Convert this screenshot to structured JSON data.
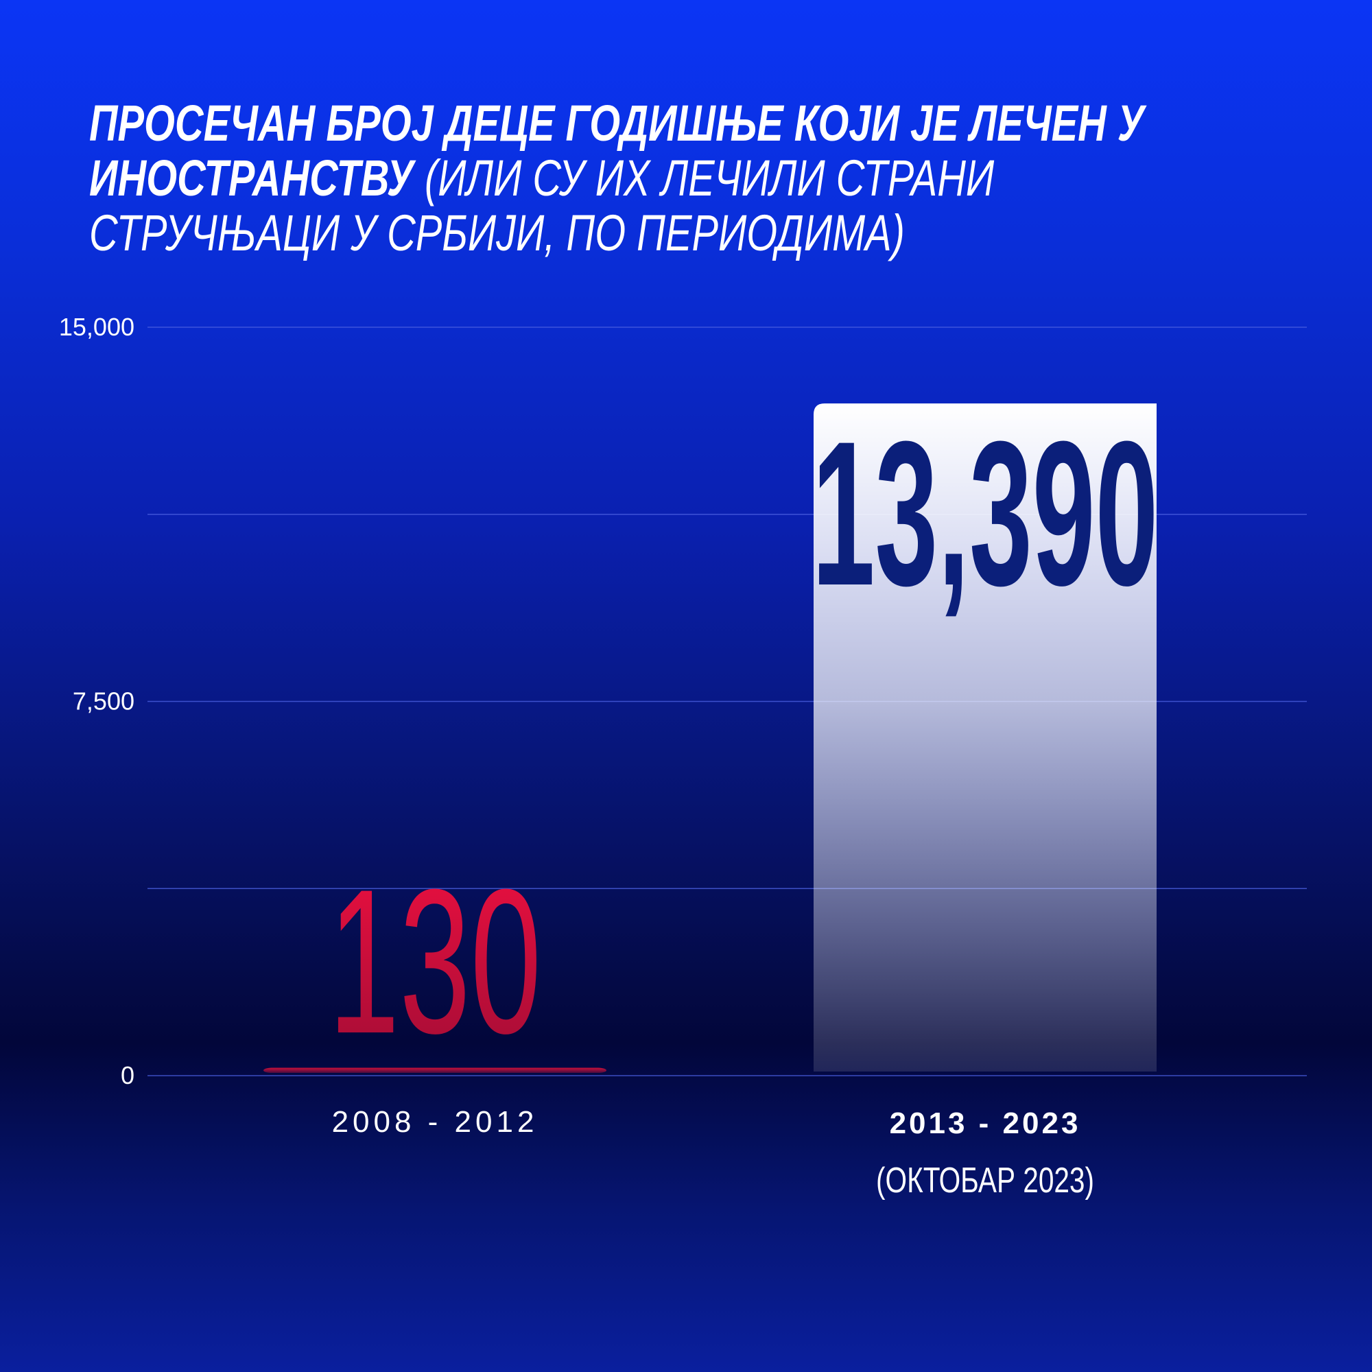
{
  "title": {
    "line1": "ПРОСЕЧАН БРОЈ ДЕЦЕ ГОДИШЊЕ КОЈИ ЈЕ ЛЕЧЕН У",
    "line2_bold": "ИНОСТРАНСТВУ",
    "line2_rest": " (ИЛИ СУ ИХ ЛЕЧИЛИ СТРАНИ",
    "line3": "СТРУЧЊАЦИ У СРБИЈИ, ПО ПЕРИОДИМА)"
  },
  "chart_data": {
    "type": "bar",
    "categories": [
      "2008 - 2012",
      "2013 - 2023"
    ],
    "category_sublabels": [
      "",
      "(ОКТОБАР 2023)"
    ],
    "values": [
      130,
      13390
    ],
    "value_labels": [
      "130",
      "13,390"
    ],
    "ylim": [
      0,
      15000
    ],
    "yticks": [
      0,
      7500,
      15000
    ],
    "ytick_labels": [
      "0",
      "7,500",
      "15,000"
    ],
    "grid": true,
    "colors": {
      "bar1": "#c8103a",
      "bar2": "#ffffff",
      "label1": "#e8103a",
      "label2": "#0b1f7a"
    }
  }
}
